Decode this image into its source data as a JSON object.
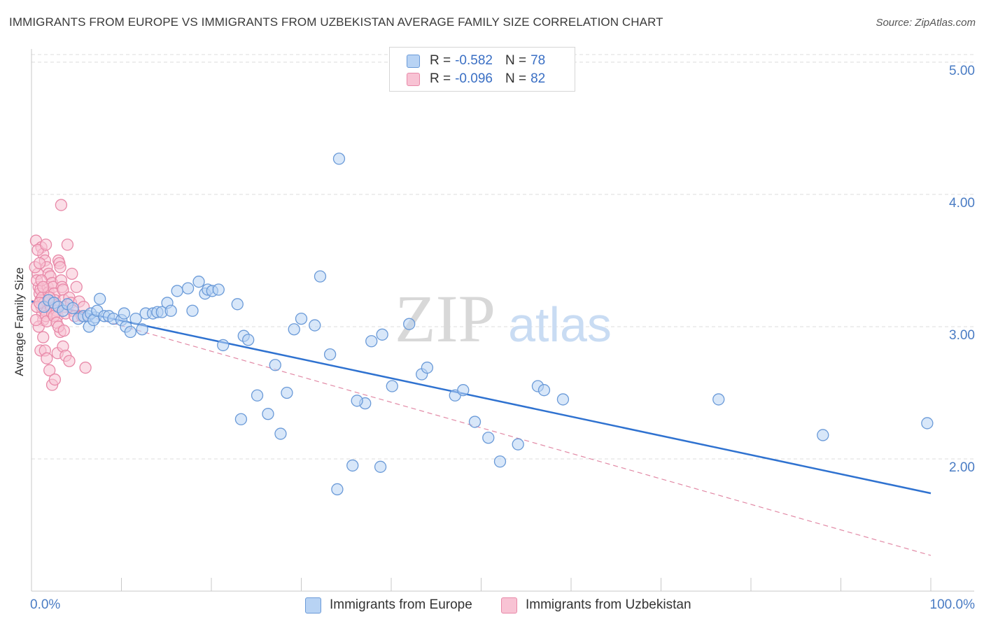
{
  "title": "IMMIGRANTS FROM EUROPE VS IMMIGRANTS FROM UZBEKISTAN AVERAGE FAMILY SIZE CORRELATION CHART",
  "source": "Source: ZipAtlas.com",
  "watermark": {
    "zip": "ZIP",
    "atlas": "atlas"
  },
  "legend": {
    "rows": [
      {
        "r_label": "R =",
        "r_value": "-0.582",
        "n_label": "N =",
        "n_value": "78"
      },
      {
        "r_label": "R =",
        "r_value": "-0.096",
        "n_label": "N =",
        "n_value": "82"
      }
    ]
  },
  "bottom_legend": [
    "Immigrants from Europe",
    "Immigrants from Uzbekistan"
  ],
  "colors": {
    "europe_fill": "#b8d3f4",
    "europe_stroke": "#6a9ad8",
    "europe_line": "#2f72d0",
    "uzbek_fill": "#f8c3d4",
    "uzbek_stroke": "#e889a8",
    "uzbek_line": "#e28aa6",
    "tick_label": "#4a7cc4",
    "grid": "#dcdcdc"
  },
  "chart_data": {
    "type": "scatter",
    "xlabel": "",
    "ylabel": "Average Family Size",
    "xlim": [
      0,
      100
    ],
    "ylim": [
      1.0,
      5.1
    ],
    "x_tick_labels": [
      "0.0%",
      "100.0%"
    ],
    "y_ticks": [
      2.0,
      3.0,
      4.0,
      5.0
    ],
    "y_tick_labels": [
      "2.00",
      "3.00",
      "4.00",
      "5.00"
    ],
    "grid": true,
    "legend_position": "top-center",
    "series": [
      {
        "name": "Immigrants from Europe",
        "points": [
          [
            1.4,
            3.15
          ],
          [
            1.9,
            3.2
          ],
          [
            2.5,
            3.18
          ],
          [
            3.0,
            3.15
          ],
          [
            3.5,
            3.12
          ],
          [
            4.0,
            3.17
          ],
          [
            4.6,
            3.14
          ],
          [
            5.2,
            3.06
          ],
          [
            5.8,
            3.08
          ],
          [
            6.3,
            3.08
          ],
          [
            7.1,
            3.07
          ],
          [
            7.6,
            3.21
          ],
          [
            6.4,
            3.0
          ],
          [
            6.6,
            3.1
          ],
          [
            6.9,
            3.05
          ],
          [
            7.3,
            3.12
          ],
          [
            8.1,
            3.08
          ],
          [
            8.6,
            3.08
          ],
          [
            9.1,
            3.06
          ],
          [
            10.0,
            3.05
          ],
          [
            10.5,
            3.0
          ],
          [
            11.0,
            2.96
          ],
          [
            11.6,
            3.06
          ],
          [
            10.3,
            3.1
          ],
          [
            12.3,
            2.98
          ],
          [
            12.7,
            3.1
          ],
          [
            13.5,
            3.1
          ],
          [
            14.0,
            3.11
          ],
          [
            14.5,
            3.11
          ],
          [
            15.1,
            3.18
          ],
          [
            15.5,
            3.12
          ],
          [
            16.2,
            3.27
          ],
          [
            17.4,
            3.29
          ],
          [
            17.9,
            3.12
          ],
          [
            18.6,
            3.34
          ],
          [
            19.3,
            3.25
          ],
          [
            19.6,
            3.28
          ],
          [
            20.1,
            3.27
          ],
          [
            20.8,
            3.28
          ],
          [
            21.3,
            2.86
          ],
          [
            22.9,
            3.17
          ],
          [
            23.3,
            2.3
          ],
          [
            23.6,
            2.93
          ],
          [
            24.1,
            2.9
          ],
          [
            25.1,
            2.48
          ],
          [
            26.3,
            2.34
          ],
          [
            27.1,
            2.71
          ],
          [
            27.7,
            2.19
          ],
          [
            28.4,
            2.5
          ],
          [
            29.2,
            2.98
          ],
          [
            30.0,
            3.06
          ],
          [
            31.5,
            3.01
          ],
          [
            32.1,
            3.38
          ],
          [
            33.2,
            2.79
          ],
          [
            34.0,
            1.77
          ],
          [
            35.7,
            1.95
          ],
          [
            37.1,
            2.42
          ],
          [
            37.8,
            2.89
          ],
          [
            38.8,
            1.94
          ],
          [
            40.1,
            2.55
          ],
          [
            36.2,
            2.44
          ],
          [
            42.0,
            3.02
          ],
          [
            43.4,
            2.64
          ],
          [
            44.0,
            2.69
          ],
          [
            47.1,
            2.48
          ],
          [
            48.0,
            2.52
          ],
          [
            49.3,
            2.28
          ],
          [
            50.8,
            2.16
          ],
          [
            52.1,
            1.98
          ],
          [
            54.1,
            2.11
          ],
          [
            56.3,
            2.55
          ],
          [
            57.0,
            2.52
          ],
          [
            59.1,
            2.45
          ],
          [
            34.2,
            4.27
          ],
          [
            76.4,
            2.45
          ],
          [
            88.0,
            2.18
          ],
          [
            99.6,
            2.27
          ],
          [
            39.0,
            2.94
          ]
        ]
      },
      {
        "name": "Immigrants from Uzbekistan",
        "points": [
          [
            0.5,
            3.65
          ],
          [
            0.7,
            3.4
          ],
          [
            0.8,
            3.3
          ],
          [
            0.9,
            3.25
          ],
          [
            1.0,
            3.2
          ],
          [
            1.1,
            3.15
          ],
          [
            1.2,
            3.1
          ],
          [
            1.3,
            3.05
          ],
          [
            0.6,
            3.35
          ],
          [
            0.8,
            3.0
          ],
          [
            1.0,
            3.28
          ],
          [
            1.2,
            3.22
          ],
          [
            1.4,
            3.18
          ],
          [
            1.5,
            3.12
          ],
          [
            1.6,
            3.08
          ],
          [
            1.7,
            3.04
          ],
          [
            1.8,
            3.3
          ],
          [
            1.9,
            3.26
          ],
          [
            2.0,
            3.2
          ],
          [
            2.1,
            3.16
          ],
          [
            2.2,
            3.14
          ],
          [
            2.3,
            3.1
          ],
          [
            0.6,
            3.15
          ],
          [
            0.9,
            3.18
          ],
          [
            1.1,
            3.6
          ],
          [
            1.3,
            3.55
          ],
          [
            1.5,
            3.5
          ],
          [
            1.7,
            3.45
          ],
          [
            1.9,
            3.4
          ],
          [
            2.1,
            3.38
          ],
          [
            2.3,
            3.33
          ],
          [
            2.4,
            3.3
          ],
          [
            2.5,
            3.25
          ],
          [
            2.6,
            3.2
          ],
          [
            2.7,
            3.16
          ],
          [
            2.8,
            3.12
          ],
          [
            2.9,
            3.08
          ],
          [
            3.0,
            3.5
          ],
          [
            3.1,
            3.48
          ],
          [
            3.2,
            3.45
          ],
          [
            3.3,
            3.35
          ],
          [
            3.4,
            3.3
          ],
          [
            3.5,
            3.28
          ],
          [
            3.6,
            3.2
          ],
          [
            3.7,
            3.15
          ],
          [
            3.8,
            3.1
          ],
          [
            4.0,
            3.62
          ],
          [
            4.2,
            3.22
          ],
          [
            4.4,
            3.18
          ],
          [
            4.6,
            3.12
          ],
          [
            4.8,
            3.08
          ],
          [
            5.0,
            3.3
          ],
          [
            5.3,
            3.19
          ],
          [
            5.6,
            3.08
          ],
          [
            1.0,
            2.82
          ],
          [
            1.3,
            2.92
          ],
          [
            1.5,
            2.82
          ],
          [
            1.7,
            2.76
          ],
          [
            2.0,
            2.67
          ],
          [
            2.3,
            2.56
          ],
          [
            2.6,
            2.6
          ],
          [
            2.9,
            2.8
          ],
          [
            3.2,
            2.96
          ],
          [
            3.5,
            2.85
          ],
          [
            3.8,
            2.78
          ],
          [
            4.2,
            2.74
          ],
          [
            6.0,
            2.69
          ],
          [
            3.3,
            3.92
          ],
          [
            0.4,
            3.45
          ],
          [
            0.5,
            3.05
          ],
          [
            0.7,
            3.58
          ],
          [
            0.9,
            3.48
          ],
          [
            1.1,
            3.35
          ],
          [
            1.3,
            3.3
          ],
          [
            1.6,
            3.62
          ],
          [
            2.0,
            3.22
          ],
          [
            2.5,
            3.08
          ],
          [
            2.8,
            3.03
          ],
          [
            3.0,
            3.0
          ],
          [
            3.6,
            2.97
          ],
          [
            4.5,
            3.4
          ],
          [
            5.8,
            3.15
          ]
        ]
      }
    ],
    "trend_lines": [
      {
        "series": "Immigrants from Europe",
        "x": [
          0,
          100
        ],
        "y": [
          3.19,
          1.74
        ]
      },
      {
        "series": "Immigrants from Uzbekistan",
        "x": [
          0,
          100
        ],
        "y": [
          3.2,
          1.27
        ]
      }
    ]
  }
}
